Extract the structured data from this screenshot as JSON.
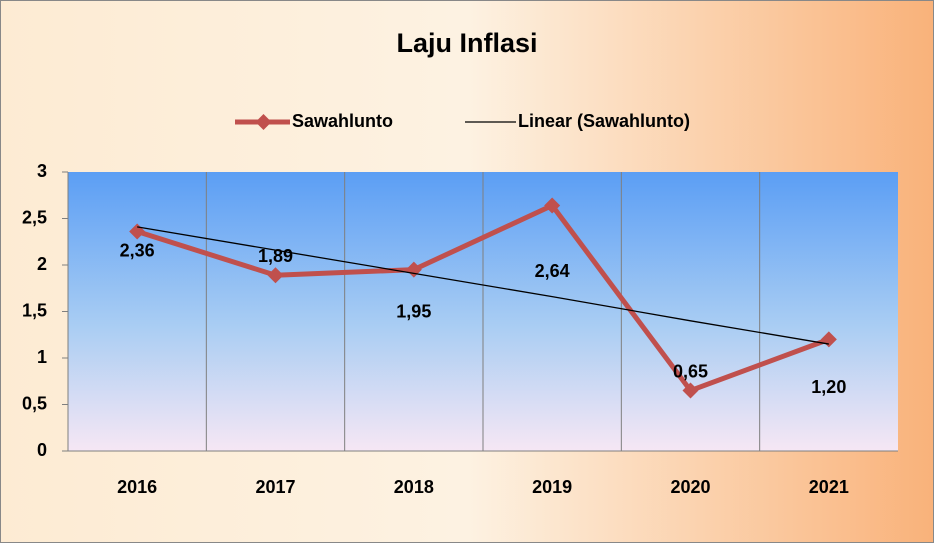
{
  "chart_data": {
    "type": "line",
    "title": "Laju Inflasi",
    "categories": [
      "2016",
      "2017",
      "2018",
      "2019",
      "2020",
      "2021"
    ],
    "series": [
      {
        "name": "Sawahlunto",
        "color": "#c0504d",
        "values": [
          2.36,
          1.89,
          1.95,
          2.64,
          0.65,
          1.2
        ],
        "value_labels": [
          "2,36",
          "1,89",
          "1,95",
          "2,64",
          "0,65",
          "1,20"
        ]
      },
      {
        "name": "Linear (Sawahlunto)",
        "color": "#000000",
        "values": [
          2.41,
          2.16,
          1.91,
          1.66,
          1.4,
          1.15
        ]
      }
    ],
    "ylim": [
      0,
      3
    ],
    "yticks": [
      0,
      {
        "value": 0.5,
        "label": "0,5"
      },
      1,
      {
        "value": 1.5,
        "label": "1,5"
      },
      2,
      {
        "value": 2.5,
        "label": "2,5"
      },
      3
    ],
    "legend": "top"
  }
}
